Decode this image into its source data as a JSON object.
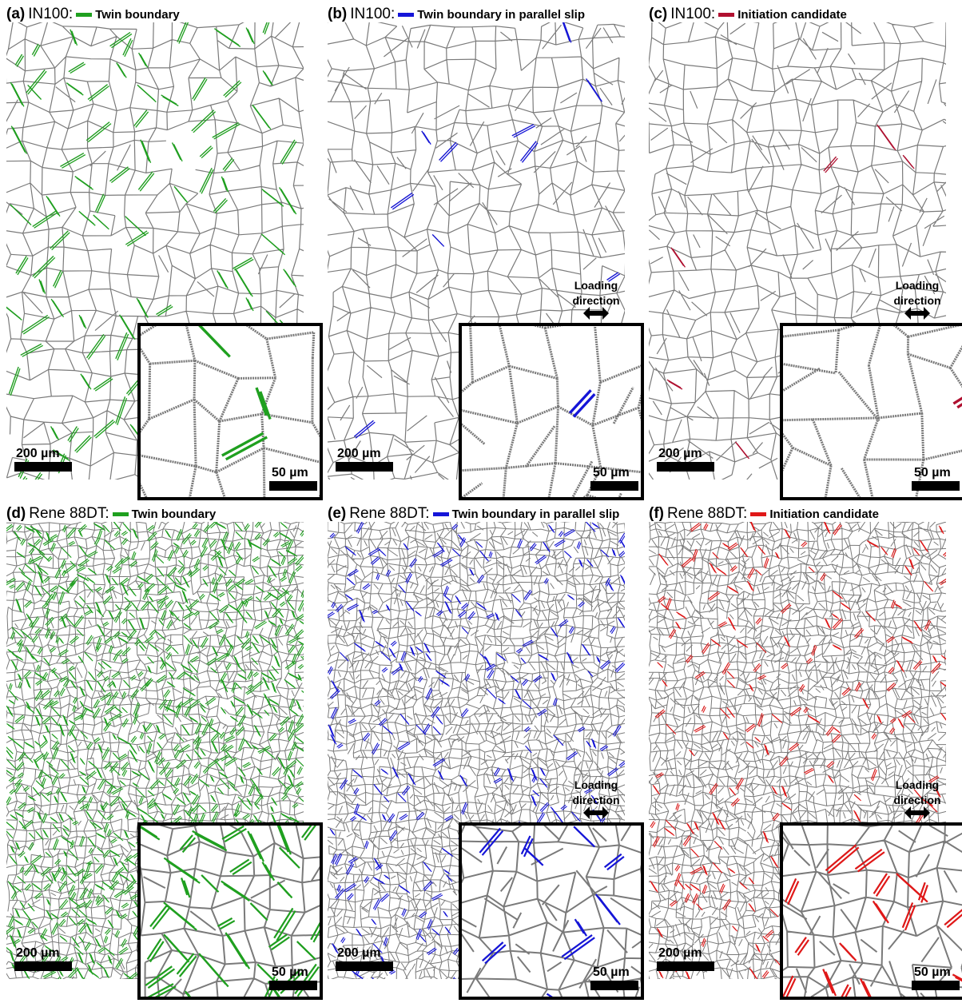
{
  "panels": [
    {
      "label": "(a)",
      "material": "IN100:",
      "legend": "Twin boundary",
      "legend_color": "#1fa01f",
      "scale_main": "200 µm",
      "scale_inset": "50 µm"
    },
    {
      "label": "(b)",
      "material": "IN100:",
      "legend": "Twin boundary in parallel slip",
      "legend_color": "#1515d8",
      "scale_main": "200 µm",
      "scale_inset": "50 µm",
      "loading": [
        "Loading",
        "direction"
      ]
    },
    {
      "label": "(c)",
      "material": "IN100:",
      "legend": "Initiation candidate",
      "legend_color": "#b01030",
      "scale_main": "200 µm",
      "scale_inset": "50 µm",
      "loading": [
        "Loading",
        "direction"
      ]
    },
    {
      "label": "(d)",
      "material": "Rene 88DT:",
      "legend": "Twin boundary",
      "legend_color": "#1fa01f",
      "scale_main": "200 µm",
      "scale_inset": "50 µm"
    },
    {
      "label": "(e)",
      "material": "Rene 88DT:",
      "legend": "Twin boundary in parallel slip",
      "legend_color": "#1515d8",
      "scale_main": "200 µm",
      "scale_inset": "50 µm",
      "loading": [
        "Loading",
        "direction"
      ]
    },
    {
      "label": "(f)",
      "material": "Rene 88DT:",
      "legend": "Initiation candidate",
      "legend_color": "#e01818",
      "scale_main": "200 µm",
      "scale_inset": "50 µm",
      "loading": [
        "Loading",
        "direction"
      ]
    }
  ]
}
